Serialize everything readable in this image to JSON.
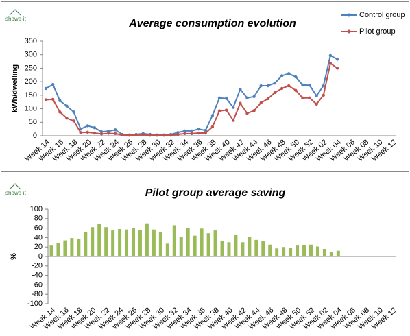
{
  "chart_data": [
    {
      "type": "line",
      "logo": "showe-it",
      "title": "Average consumption evolution",
      "y_label": "kWh/dwelling",
      "categories": [
        "Week 14",
        null,
        "Week 16",
        null,
        "Week 18",
        null,
        "Week 20",
        null,
        "Week 22",
        null,
        "Week 24",
        null,
        "Week 26",
        null,
        "Week 28",
        null,
        "Week 30",
        null,
        "Week 32",
        null,
        "Week 34",
        null,
        "Week 36",
        null,
        "Week 38",
        null,
        "Week 40",
        null,
        "Week 42",
        null,
        "Week 44",
        null,
        "Week 46",
        null,
        "Week 48",
        null,
        "Week 50",
        null,
        "Week 52",
        null,
        "Week 02",
        null,
        "Week 04",
        null,
        "Week 06",
        null,
        "Week 08",
        null,
        "Week 10",
        null,
        "Week 12"
      ],
      "series": [
        {
          "name": "Control group",
          "color": "#4f81bd",
          "values": [
            175,
            190,
            130,
            110,
            88,
            25,
            37,
            30,
            15,
            17,
            22,
            5,
            3,
            5,
            8,
            5,
            3,
            3,
            5,
            12,
            18,
            18,
            25,
            20,
            75,
            140,
            138,
            105,
            172,
            140,
            145,
            185,
            185,
            195,
            222,
            230,
            218,
            188,
            187,
            148,
            185,
            297,
            283,
            null,
            null,
            null,
            null,
            null,
            null,
            null,
            null
          ]
        },
        {
          "name": "Pilot group",
          "color": "#c0504d",
          "values": [
            133,
            135,
            88,
            65,
            55,
            12,
            13,
            10,
            7,
            9,
            8,
            3,
            2,
            3,
            4,
            2,
            2,
            2,
            2,
            5,
            8,
            8,
            10,
            10,
            33,
            92,
            95,
            57,
            120,
            83,
            93,
            122,
            137,
            160,
            175,
            185,
            168,
            140,
            140,
            117,
            150,
            268,
            250,
            null,
            null,
            null,
            null,
            null,
            null,
            null,
            null
          ]
        }
      ],
      "ylim": [
        0,
        350
      ],
      "yticks": [
        0,
        50,
        100,
        150,
        200,
        250,
        300,
        350
      ],
      "legend": "top-right"
    },
    {
      "type": "bar",
      "logo": "showe-it",
      "title": "Pilot group average saving",
      "y_label": "%",
      "color": "#9bbb59",
      "categories": [
        "Week 14",
        null,
        "Week 16",
        null,
        "Week 18",
        null,
        "Week 20",
        null,
        "Week 22",
        null,
        "Week 24",
        null,
        "Week 26",
        null,
        "Week 28",
        null,
        "Week 30",
        null,
        "Week 32",
        null,
        "Week 34",
        null,
        "Week 36",
        null,
        "Week 38",
        null,
        "Week 40",
        null,
        "Week 42",
        null,
        "Week 44",
        null,
        "Week 46",
        null,
        "Week 48",
        null,
        "Week 50",
        null,
        "Week 52",
        null,
        "Week 02",
        null,
        "Week 04",
        null,
        "Week 06",
        null,
        "Week 08",
        null,
        "Week 10",
        null,
        "Week 12"
      ],
      "values": [
        23,
        29,
        34,
        39,
        37,
        51,
        62,
        69,
        62,
        55,
        58,
        57,
        60,
        55,
        70,
        57,
        51,
        27,
        66,
        41,
        60,
        44,
        59,
        49,
        55,
        33,
        30,
        45,
        30,
        41,
        35,
        33,
        25,
        17,
        20,
        18,
        23,
        24,
        25,
        21,
        16,
        10,
        12,
        null,
        null,
        null,
        null,
        null,
        null,
        null,
        null
      ],
      "ylim": [
        -100,
        100
      ],
      "yticks": [
        -100,
        -80,
        -60,
        -40,
        -20,
        0,
        20,
        40,
        60,
        80,
        100
      ]
    }
  ]
}
